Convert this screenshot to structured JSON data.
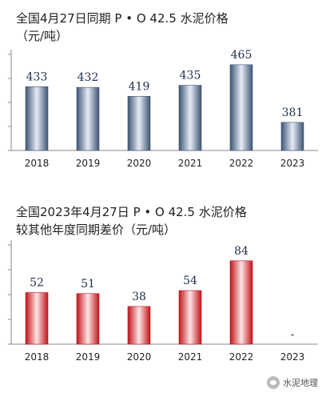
{
  "chart_data": [
    {
      "type": "bar",
      "title_line1": "全国4月27日同期 P • O 42.5 水泥价格",
      "title_line2": "（元/吨）",
      "categories": [
        "2018",
        "2019",
        "2020",
        "2021",
        "2022",
        "2023"
      ],
      "values": [
        433,
        432,
        419,
        435,
        465,
        381
      ],
      "value_labels": [
        "433",
        "432",
        "419",
        "435",
        "465",
        "381"
      ],
      "ylim": [
        340,
        480
      ],
      "grid": false,
      "color": "#3e5475",
      "color_light": "#e6ecf5"
    },
    {
      "type": "bar",
      "title_line1": "全国2023年4月27日 P • O 42.5 水泥价格",
      "title_line2": "较其他年度同期差价（元/吨）",
      "categories": [
        "2018",
        "2019",
        "2020",
        "2021",
        "2022",
        "2023"
      ],
      "values": [
        52,
        51,
        38,
        54,
        84,
        null
      ],
      "value_labels": [
        "52",
        "51",
        "38",
        "54",
        "84",
        "-"
      ],
      "ylim": [
        0,
        100
      ],
      "grid": false,
      "color": "#c0141b",
      "color_light": "#fde5e5"
    }
  ],
  "watermark": {
    "text": "水泥地理"
  }
}
